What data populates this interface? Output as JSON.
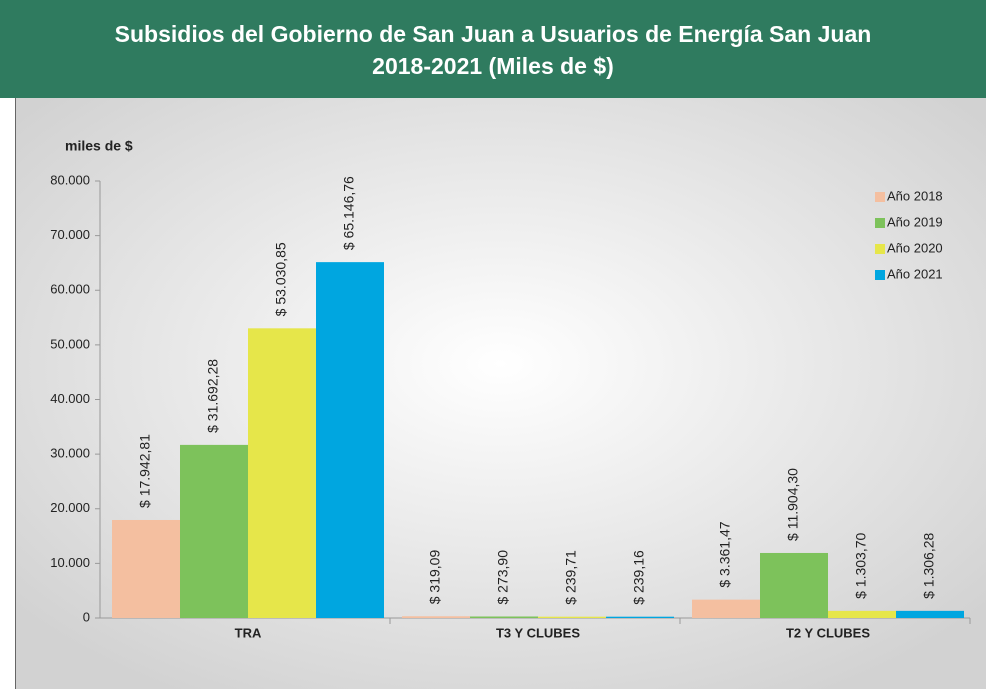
{
  "chart_data": {
    "type": "bar",
    "title": [
      "Subsidios del Gobierno de San Juan a Usuarios de Energía San Juan",
      "2018-2021 (Miles de $)"
    ],
    "y_label": "miles de $",
    "categories": [
      "TRA",
      "T3 Y CLUBES",
      "T2 Y CLUBES"
    ],
    "series": [
      {
        "name": "Año 2018",
        "color": "#f4bfa0",
        "values": [
          17942.81,
          319.09,
          3361.47
        ],
        "value_labels": [
          "$ 17.942,81",
          "$ 319,09",
          "$ 3.361,47"
        ]
      },
      {
        "name": "Año 2019",
        "color": "#7dc25b",
        "values": [
          31692.28,
          273.9,
          11904.3
        ],
        "value_labels": [
          "$ 31.692,28",
          "$ 273,90",
          "$ 11.904,30"
        ]
      },
      {
        "name": "Año 2020",
        "color": "#e6e64a",
        "values": [
          53030.85,
          239.71,
          1303.7
        ],
        "value_labels": [
          "$ 53.030,85",
          "$ 239,71",
          "$ 1.303,70"
        ]
      },
      {
        "name": "Año 2021",
        "color": "#00a6e0",
        "values": [
          65146.76,
          239.16,
          1306.28
        ],
        "value_labels": [
          "$ 65.146,76",
          "$ 239,16",
          "$ 1.306,28"
        ]
      }
    ],
    "ylim": [
      0,
      80000
    ],
    "yticks": [
      0,
      {
        "value": 10000,
        "label": "10.000"
      },
      {
        "value": 20000,
        "label": "20.000"
      },
      {
        "value": 30000,
        "label": "30.000"
      },
      {
        "value": 40000,
        "label": "40.000"
      },
      {
        "value": 50000,
        "label": "50.000"
      },
      {
        "value": 60000,
        "label": "60.000"
      },
      {
        "value": 70000,
        "label": "70.000"
      },
      {
        "value": 80000,
        "label": "80.000"
      }
    ],
    "legend": "upper right"
  }
}
